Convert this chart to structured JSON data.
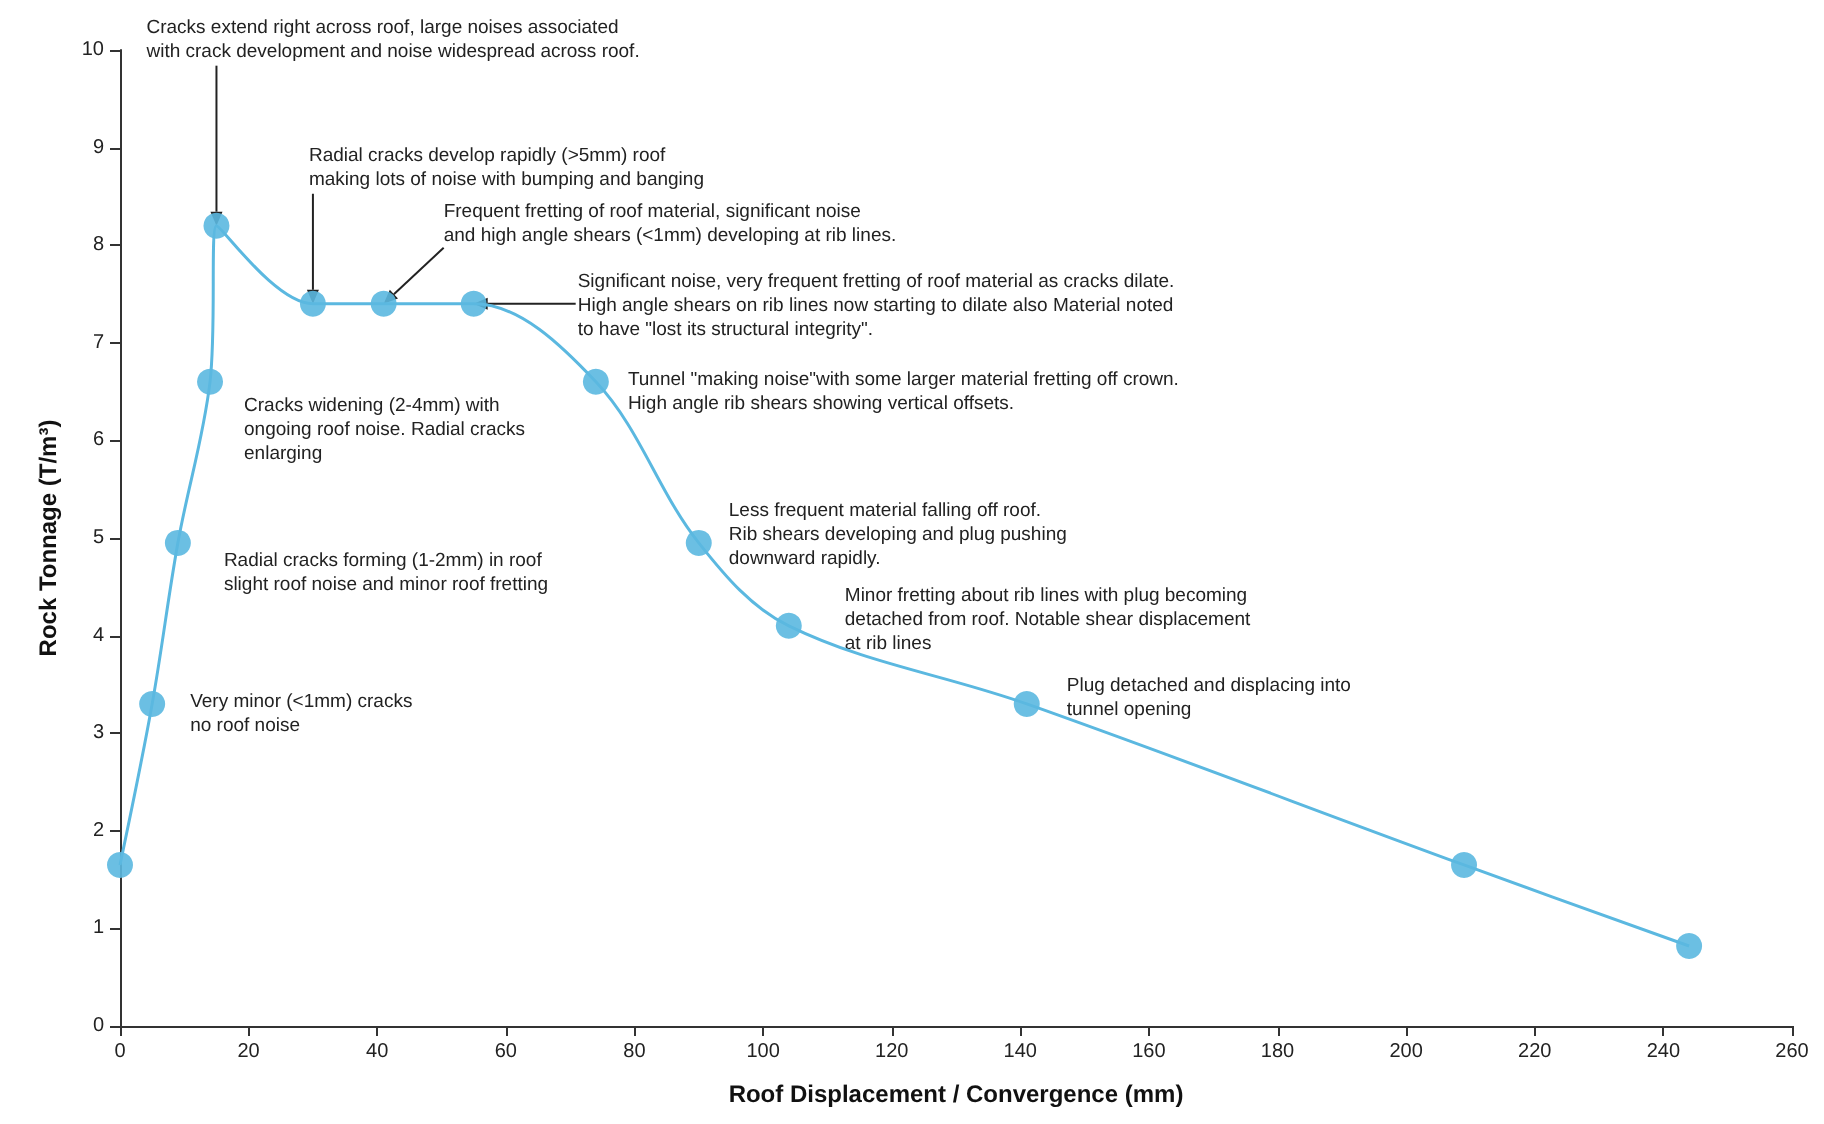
{
  "chart_data": {
    "type": "line",
    "xlabel": "Roof Displacement / Convergence (mm)",
    "ylabel": "Rock Tonnage (T/m³)",
    "x": [
      0,
      5,
      9,
      14,
      15,
      30,
      41,
      55,
      74,
      90,
      104,
      141,
      209,
      244
    ],
    "series": [
      {
        "color": "#5bb8e0",
        "values": [
          1.65,
          3.3,
          4.95,
          6.6,
          8.2,
          7.4,
          7.4,
          7.4,
          6.6,
          4.95,
          4.1,
          3.3,
          1.65,
          0.82
        ]
      }
    ],
    "xlim": [
      0,
      260
    ],
    "xticks": [
      0,
      20,
      40,
      60,
      80,
      100,
      120,
      140,
      160,
      180,
      200,
      220,
      240,
      260
    ],
    "ylim": [
      0,
      10
    ],
    "yticks": [
      0,
      1,
      2,
      3,
      4,
      5,
      6,
      7,
      8,
      9,
      10
    ],
    "grid": false,
    "marker": "circle",
    "line_style": "solid",
    "annotations": [
      {
        "text": "Very minor (<1mm) cracks\nno roof noise",
        "x": 5,
        "y": 3.3
      },
      {
        "text": "Radial cracks forming (1-2mm) in roof\nslight roof noise and minor roof fretting",
        "x": 9,
        "y": 4.95
      },
      {
        "text": "Cracks widening (2-4mm) with\nongoing roof noise. Radial cracks\nenlarging",
        "x": 14,
        "y": 6.6
      },
      {
        "text": "Cracks extend right across roof, large noises associated\nwith crack development and noise widespread across roof.",
        "x": 15,
        "y": 8.2
      },
      {
        "text": "Radial cracks develop rapidly (>5mm) roof\nmaking lots of noise with bumping and banging",
        "x": 30,
        "y": 7.4
      },
      {
        "text": "Frequent fretting of roof material, significant noise\nand high angle shears (<1mm) developing at rib lines.",
        "x": 41,
        "y": 7.4
      },
      {
        "text": "Significant noise, very frequent fretting of roof material as cracks dilate.\nHigh angle shears on rib lines now starting to dilate also Material noted\nto have \"lost its structural integrity\".",
        "x": 55,
        "y": 7.4
      },
      {
        "text": "Tunnel \"making noise\"with some larger material fretting off crown.\nHigh angle rib shears showing vertical offsets.",
        "x": 74,
        "y": 6.6
      },
      {
        "text": "Less frequent material falling off roof.\nRib shears developing and plug pushing\ndownward rapidly.",
        "x": 90,
        "y": 4.95
      },
      {
        "text": "Minor fretting about rib lines with plug becoming\ndetached from roof. Notable shear displacement\nat rib lines",
        "x": 104,
        "y": 4.1
      },
      {
        "text": "Plug detached and displacing into\ntunnel opening",
        "x": 141,
        "y": 3.3
      }
    ]
  }
}
